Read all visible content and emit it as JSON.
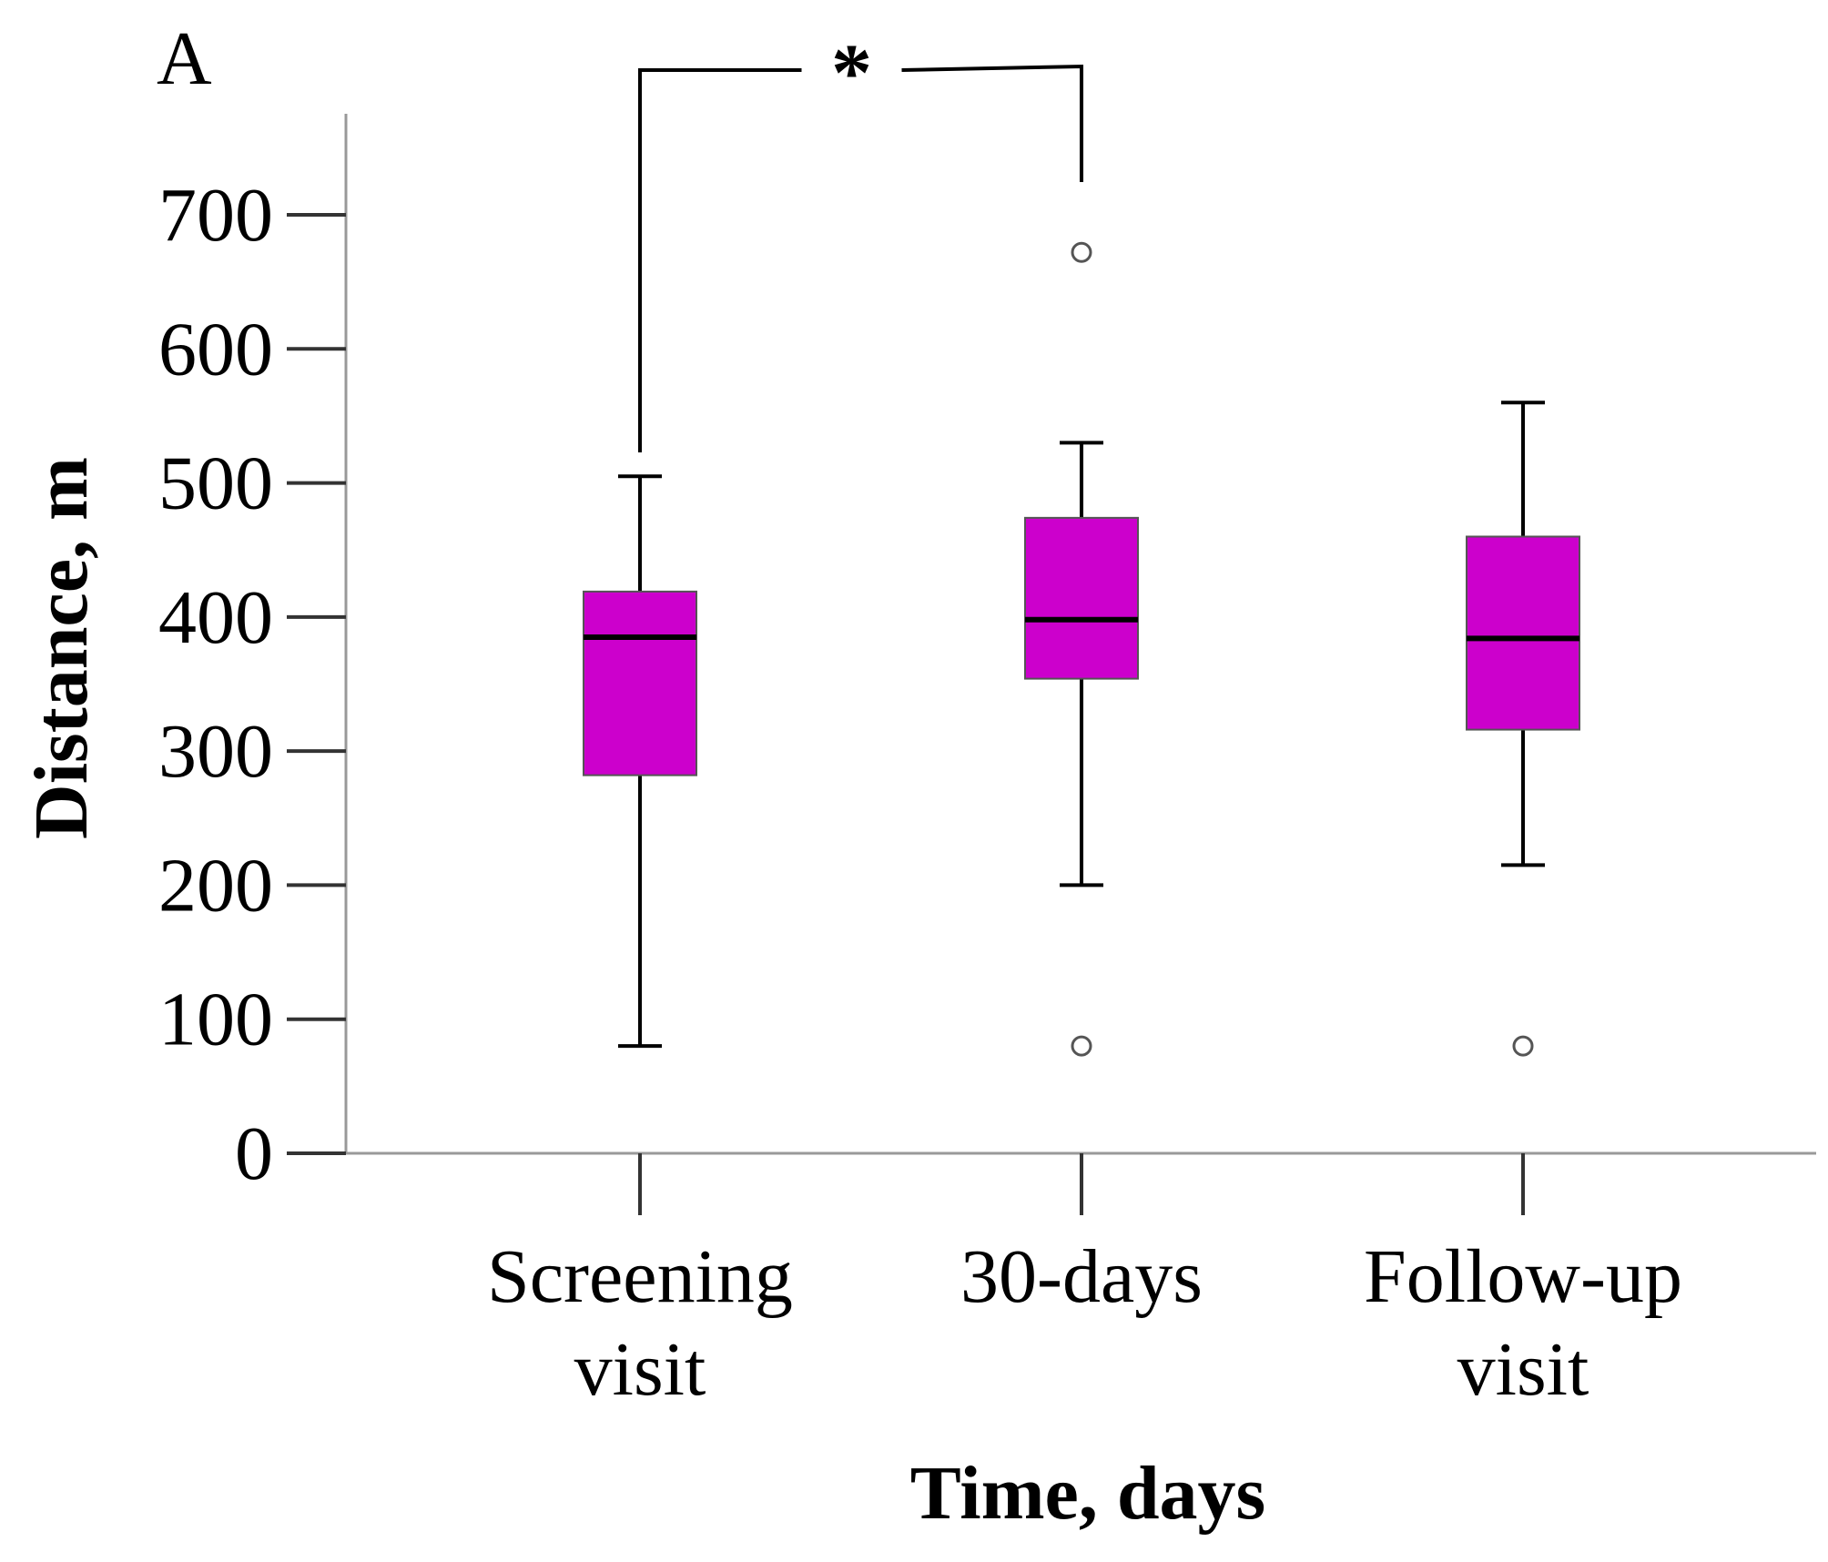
{
  "panel_label": "A",
  "chart_data": {
    "type": "boxplot",
    "title": "",
    "xlabel": "Time, days",
    "ylabel": "Distance, m",
    "ylim": [
      0,
      775
    ],
    "yticks": [
      0,
      100,
      200,
      300,
      400,
      500,
      600,
      700
    ],
    "ytick_labels": [
      "0",
      "100",
      "200",
      "300",
      "400",
      "500",
      "600",
      "700"
    ],
    "box_color": "#cc00cc",
    "categories": [
      {
        "label_lines": [
          "Screening",
          "visit"
        ],
        "whisker_low": 80,
        "q1": 282,
        "median": 385,
        "q3": 419,
        "whisker_high": 505,
        "outliers": []
      },
      {
        "label_lines": [
          "30-days"
        ],
        "whisker_low": 200,
        "q1": 354,
        "median": 398,
        "q3": 474,
        "whisker_high": 530,
        "outliers": [
          80,
          672
        ]
      },
      {
        "label_lines": [
          "Follow-up",
          "visit"
        ],
        "whisker_low": 215,
        "q1": 316,
        "median": 384,
        "q3": 460,
        "whisker_high": 560,
        "outliers": [
          80
        ]
      }
    ],
    "significance": {
      "from_index": 0,
      "to_index": 1,
      "label": "*"
    }
  }
}
